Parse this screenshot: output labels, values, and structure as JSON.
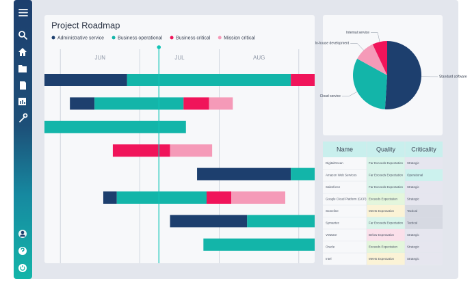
{
  "roadmap": {
    "title": "Project Roadmap",
    "series": [
      {
        "name": "Administrative service",
        "color": "#1d3f6e"
      },
      {
        "name": "Business operational",
        "color": "#13b5a9"
      },
      {
        "name": "Business critical",
        "color": "#f0145a"
      },
      {
        "name": "Mission critical",
        "color": "#f59ab8"
      }
    ],
    "xlim": [
      -0.2,
      3.2
    ],
    "xticks": [
      0,
      1,
      2,
      3
    ],
    "months": [
      {
        "value": 0.5,
        "label": "JUN"
      },
      {
        "value": 1.5,
        "label": "JUL"
      },
      {
        "value": 2.5,
        "label": "AUG"
      }
    ],
    "today": 1.24,
    "rows": [
      [
        {
          "series": 0,
          "start": -0.2,
          "end": 0.84
        },
        {
          "series": 1,
          "start": 0.84,
          "end": 2.9
        },
        {
          "series": 2,
          "start": 2.9,
          "end": 3.2
        }
      ],
      [
        {
          "series": 0,
          "start": 0.12,
          "end": 0.43
        },
        {
          "series": 1,
          "start": 0.43,
          "end": 1.55
        },
        {
          "series": 2,
          "start": 1.55,
          "end": 1.87
        },
        {
          "series": 3,
          "start": 1.87,
          "end": 2.17
        }
      ],
      [
        {
          "series": 1,
          "start": -0.2,
          "end": 1.58
        }
      ],
      [
        {
          "series": 2,
          "start": 0.66,
          "end": 1.38
        },
        {
          "series": 3,
          "start": 1.38,
          "end": 1.91
        }
      ],
      [
        {
          "series": 0,
          "start": 1.72,
          "end": 2.9
        },
        {
          "series": 1,
          "start": 2.9,
          "end": 3.2
        }
      ],
      [
        {
          "series": 0,
          "start": 0.54,
          "end": 0.71
        },
        {
          "series": 1,
          "start": 0.71,
          "end": 1.84
        },
        {
          "series": 2,
          "start": 1.84,
          "end": 2.15
        },
        {
          "series": 3,
          "start": 2.15,
          "end": 2.83
        }
      ],
      [
        {
          "series": 0,
          "start": 1.38,
          "end": 2.35
        },
        {
          "series": 1,
          "start": 2.35,
          "end": 3.2
        }
      ],
      [
        {
          "series": 1,
          "start": 1.8,
          "end": 3.2
        }
      ]
    ]
  },
  "pie": {
    "slices": [
      {
        "name": "Standard software",
        "value": 51,
        "color": "#1d3f6e"
      },
      {
        "name": "Cloud service",
        "value": 32,
        "color": "#13b5a9"
      },
      {
        "name": "In-house development",
        "value": 10,
        "color": "#f59ab8"
      },
      {
        "name": "Internal service",
        "value": 7,
        "color": "#f0145a"
      }
    ]
  },
  "table": {
    "columns": [
      "Name",
      "Quality",
      "Criticality"
    ],
    "rows": [
      {
        "name": "DigitalOcean",
        "quality": "Far Exceeds Expectation",
        "criticality": "Strategic",
        "quality_color": "#d9f4ea",
        "criticality_color": "#e6e6ef"
      },
      {
        "name": "Amazon Web Services",
        "quality": "Far Exceeds Expectation",
        "criticality": "Operational",
        "quality_color": "#d9f4ea",
        "criticality_color": "#ccf2ee"
      },
      {
        "name": "Salesforce",
        "quality": "Far Exceeds Expectation",
        "criticality": "Strategic",
        "quality_color": "#d9f4ea",
        "criticality_color": "#e6e6ef"
      },
      {
        "name": "Google Cloud Platform (GCP)",
        "quality": "Exceeds Expectation",
        "criticality": "Strategic",
        "quality_color": "#e4f6dc",
        "criticality_color": "#e6e6ef"
      },
      {
        "name": "Stoneline",
        "quality": "Meets Expectation",
        "criticality": "Tactical",
        "quality_color": "#fbf3d6",
        "criticality_color": "#d6d9e2"
      },
      {
        "name": "Symantec",
        "quality": "Far Exceeds Expectation",
        "criticality": "Tactical",
        "quality_color": "#d9f4ea",
        "criticality_color": "#d6d9e2"
      },
      {
        "name": "VMware",
        "quality": "Below Expectation",
        "criticality": "Strategic",
        "quality_color": "#fbe0ea",
        "criticality_color": "#e6e6ef"
      },
      {
        "name": "Oracle",
        "quality": "Exceeds Expectation",
        "criticality": "Strategic",
        "quality_color": "#e4f6dc",
        "criticality_color": "#e6e6ef"
      },
      {
        "name": "Intel",
        "quality": "Meets Expectation",
        "criticality": "Strategic",
        "quality_color": "#fbf3d6",
        "criticality_color": "#e6e6ef"
      }
    ]
  }
}
